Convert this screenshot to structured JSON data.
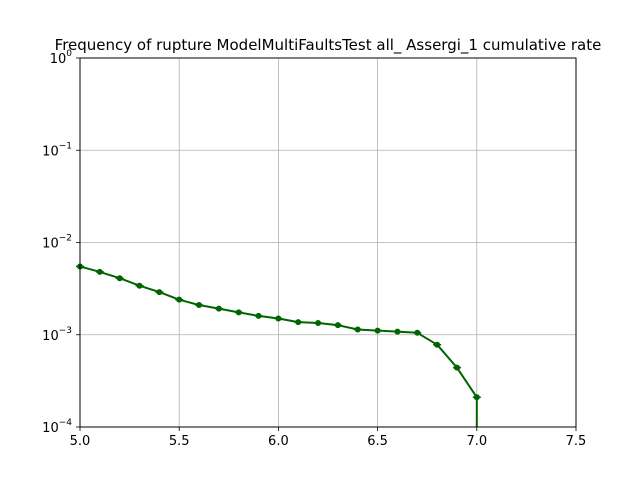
{
  "chart_data": {
    "type": "line",
    "title": "Frequency of rupture ModelMultiFaultsTest all_ Assergi_1 cumulative rate",
    "xlabel": "",
    "ylabel": "",
    "xlim": [
      5.0,
      7.5
    ],
    "ylim": [
      0.0001,
      1
    ],
    "yscale": "log",
    "grid": true,
    "x_ticks": [
      {
        "value": 5.0,
        "label": "5.0"
      },
      {
        "value": 5.5,
        "label": "5.5"
      },
      {
        "value": 6.0,
        "label": "6.0"
      },
      {
        "value": 6.5,
        "label": "6.5"
      },
      {
        "value": 7.0,
        "label": "7.0"
      },
      {
        "value": 7.5,
        "label": "7.5"
      }
    ],
    "y_ticks": [
      {
        "value": 0.0001,
        "base": "10",
        "exp": "−4"
      },
      {
        "value": 0.001,
        "base": "10",
        "exp": "−3"
      },
      {
        "value": 0.01,
        "base": "10",
        "exp": "−2"
      },
      {
        "value": 0.1,
        "base": "10",
        "exp": "−1"
      },
      {
        "value": 1,
        "base": "10",
        "exp": "0"
      }
    ],
    "series": [
      {
        "color": "#006400",
        "x": [
          5.0,
          5.1,
          5.2,
          5.3,
          5.4,
          5.5,
          5.6,
          5.7,
          5.8,
          5.9,
          6.0,
          6.1,
          6.2,
          6.3,
          6.4,
          6.5,
          6.6,
          6.7,
          6.8,
          6.9,
          7.0,
          7.0
        ],
        "y": [
          0.0055,
          0.0048,
          0.0041,
          0.0034,
          0.0029,
          0.0024,
          0.0021,
          0.00192,
          0.00175,
          0.0016,
          0.0015,
          0.00137,
          0.00134,
          0.00127,
          0.00114,
          0.00111,
          0.00108,
          0.00105,
          0.00078,
          0.00044,
          0.00021,
          0.0001
        ]
      }
    ]
  }
}
